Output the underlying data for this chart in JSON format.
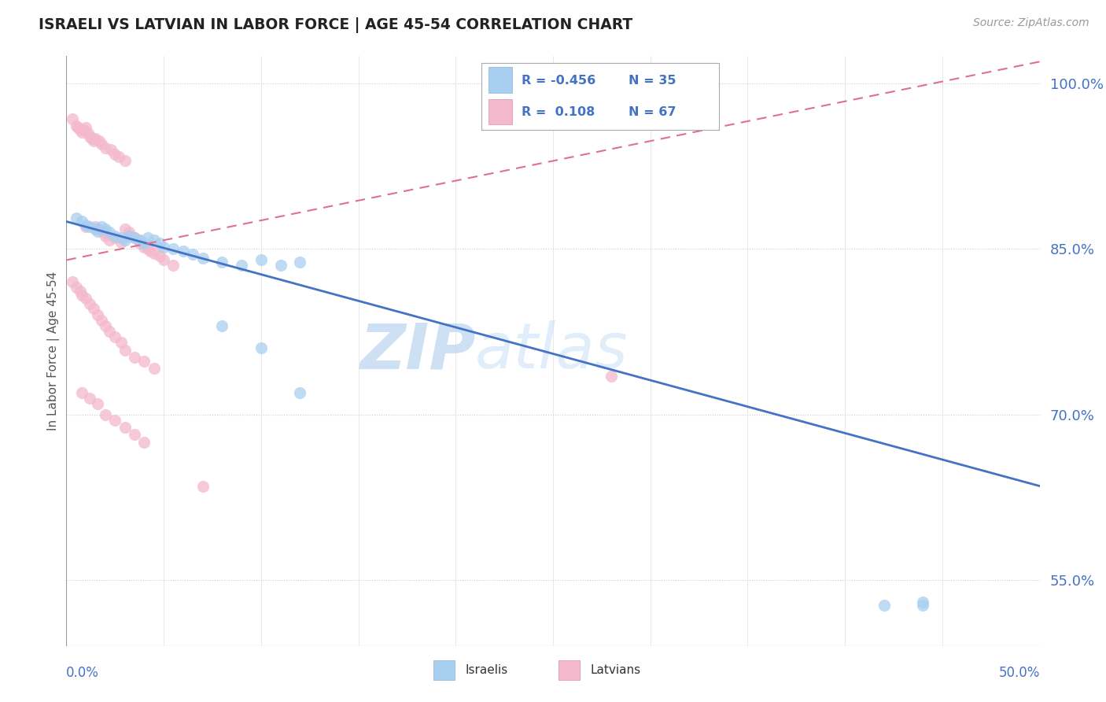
{
  "title": "ISRAELI VS LATVIAN IN LABOR FORCE | AGE 45-54 CORRELATION CHART",
  "source": "Source: ZipAtlas.com",
  "ylabel": "In Labor Force | Age 45-54",
  "xmin": 0.0,
  "xmax": 0.5,
  "ymin": 0.49,
  "ymax": 1.025,
  "right_yticks": [
    1.0,
    0.85,
    0.7,
    0.55
  ],
  "right_yticklabels": [
    "100.0%",
    "85.0%",
    "70.0%",
    "55.0%"
  ],
  "legend_R_israeli": "-0.456",
  "legend_N_israeli": "35",
  "legend_R_latvian": "0.108",
  "legend_N_latvian": "67",
  "israeli_color": "#a8cff0",
  "latvian_color": "#f4b8cc",
  "israeli_line_color": "#4472c4",
  "latvian_line_color": "#e07090",
  "watermark_zip": "ZIP",
  "watermark_atlas": "atlas",
  "background_color": "#ffffff",
  "israeli_trendline_x": [
    0.0,
    0.5
  ],
  "israeli_trendline_y": [
    0.875,
    0.635
  ],
  "latvian_trendline_x": [
    0.0,
    0.5
  ],
  "latvian_trendline_y": [
    0.84,
    1.02
  ],
  "isr_x": [
    0.005,
    0.008,
    0.01,
    0.012,
    0.015,
    0.016,
    0.018,
    0.02,
    0.022,
    0.025,
    0.028,
    0.03,
    0.032,
    0.035,
    0.038,
    0.04,
    0.042,
    0.045,
    0.048,
    0.05,
    0.055,
    0.06,
    0.065,
    0.07,
    0.08,
    0.09,
    0.1,
    0.11,
    0.12,
    0.08,
    0.1,
    0.12,
    0.42,
    0.44,
    0.44
  ],
  "isr_y": [
    0.878,
    0.875,
    0.872,
    0.87,
    0.868,
    0.866,
    0.87,
    0.868,
    0.865,
    0.862,
    0.86,
    0.858,
    0.862,
    0.86,
    0.858,
    0.855,
    0.86,
    0.858,
    0.855,
    0.852,
    0.85,
    0.848,
    0.845,
    0.842,
    0.838,
    0.835,
    0.84,
    0.835,
    0.838,
    0.78,
    0.76,
    0.72,
    0.527,
    0.527,
    0.53
  ],
  "lat_x": [
    0.003,
    0.005,
    0.006,
    0.007,
    0.008,
    0.009,
    0.01,
    0.01,
    0.011,
    0.012,
    0.013,
    0.014,
    0.015,
    0.015,
    0.016,
    0.017,
    0.018,
    0.019,
    0.02,
    0.02,
    0.022,
    0.023,
    0.025,
    0.025,
    0.027,
    0.028,
    0.03,
    0.03,
    0.032,
    0.033,
    0.035,
    0.037,
    0.038,
    0.04,
    0.042,
    0.043,
    0.045,
    0.048,
    0.05,
    0.055,
    0.003,
    0.005,
    0.007,
    0.008,
    0.01,
    0.012,
    0.014,
    0.016,
    0.018,
    0.02,
    0.022,
    0.025,
    0.028,
    0.03,
    0.035,
    0.04,
    0.045,
    0.008,
    0.012,
    0.016,
    0.02,
    0.025,
    0.03,
    0.035,
    0.04,
    0.07,
    0.28
  ],
  "lat_y": [
    0.968,
    0.962,
    0.96,
    0.958,
    0.956,
    0.958,
    0.96,
    0.87,
    0.955,
    0.952,
    0.95,
    0.948,
    0.95,
    0.87,
    0.868,
    0.948,
    0.945,
    0.865,
    0.942,
    0.862,
    0.858,
    0.94,
    0.936,
    0.86,
    0.934,
    0.856,
    0.93,
    0.868,
    0.865,
    0.862,
    0.86,
    0.858,
    0.855,
    0.852,
    0.85,
    0.848,
    0.846,
    0.844,
    0.84,
    0.835,
    0.82,
    0.815,
    0.812,
    0.808,
    0.805,
    0.8,
    0.796,
    0.79,
    0.785,
    0.78,
    0.775,
    0.77,
    0.765,
    0.758,
    0.752,
    0.748,
    0.742,
    0.72,
    0.715,
    0.71,
    0.7,
    0.695,
    0.688,
    0.682,
    0.675,
    0.635,
    0.735
  ]
}
